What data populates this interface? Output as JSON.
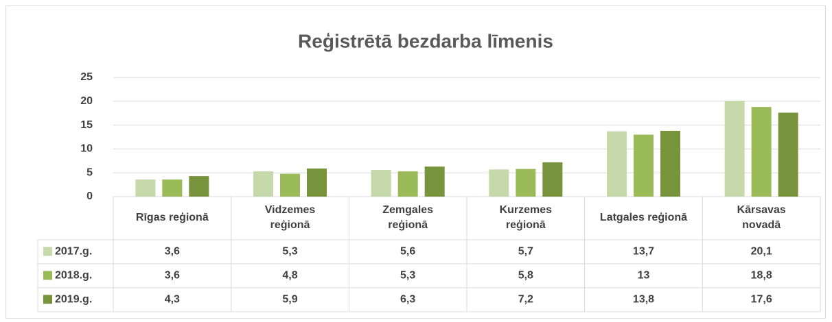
{
  "chart_data": {
    "type": "bar",
    "title": "Reģistrētā bezdarba līmenis",
    "categories": [
      "Rīgas reģionā",
      "Vidzemes\nreģionā",
      "Zemgales\nreģionā",
      "Kurzemes\nreģionā",
      "Latgales reģionā",
      "Kārsavas\nnovadā"
    ],
    "series": [
      {
        "name": "2017.g.",
        "color": "#c6d9aa",
        "values": [
          3.6,
          5.3,
          5.6,
          5.7,
          13.7,
          20.1
        ],
        "value_labels": [
          "3,6",
          "5,3",
          "5,6",
          "5,7",
          "13,7",
          "20,1"
        ]
      },
      {
        "name": "2018.g.",
        "color": "#9bbb59",
        "values": [
          3.6,
          4.8,
          5.3,
          5.8,
          13,
          18.8
        ],
        "value_labels": [
          "3,6",
          "4,8",
          "5,3",
          "5,8",
          "13",
          "18,8"
        ]
      },
      {
        "name": "2019.g.",
        "color": "#77933c",
        "values": [
          4.3,
          5.9,
          6.3,
          7.2,
          13.8,
          17.6
        ],
        "value_labels": [
          "4,3",
          "5,9",
          "6,3",
          "7,2",
          "13,8",
          "17,6"
        ]
      }
    ],
    "ylim": [
      0,
      25
    ],
    "yticks": [
      0,
      5,
      10,
      15,
      20,
      25
    ],
    "grid": true,
    "legend": "table"
  }
}
